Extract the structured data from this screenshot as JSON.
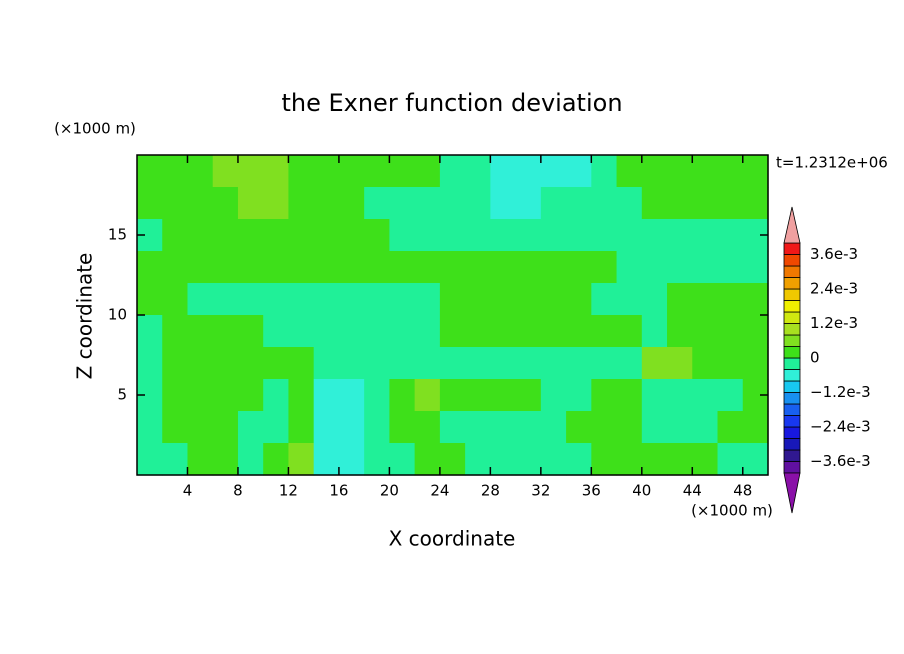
{
  "chart_data": {
    "type": "contour",
    "title": "the Exner function deviation",
    "xlabel": "X coordinate",
    "ylabel": "Z coordinate",
    "x_unit": "(×1000 m)",
    "y_unit": "(×1000 m)",
    "annotation": "t=1.2312e+06",
    "xlim": [
      0,
      50
    ],
    "ylim": [
      0,
      20
    ],
    "xticks": [
      4,
      8,
      12,
      16,
      20,
      24,
      28,
      32,
      36,
      40,
      44,
      48
    ],
    "yticks": [
      5,
      10,
      15
    ],
    "x": [
      1,
      3,
      5,
      7,
      9,
      11,
      13,
      15,
      17,
      19,
      21,
      23,
      25,
      27,
      29,
      31,
      33,
      35,
      37,
      39,
      41,
      43,
      45,
      47,
      49
    ],
    "y": [
      19,
      17,
      15,
      13,
      11,
      9,
      7,
      5,
      3,
      1
    ],
    "z": [
      [
        0.0002,
        0.0002,
        0.0002,
        0.0006,
        0.0006,
        0.0006,
        0.0002,
        0.0002,
        0.0002,
        0.0002,
        0.0002,
        0.0002,
        -0.0002,
        -0.0002,
        -0.0006,
        -0.0006,
        -0.0006,
        -0.0006,
        -0.0002,
        0.0002,
        0.0002,
        0.0002,
        0.0002,
        0.0002,
        0.0002
      ],
      [
        0.0002,
        0.0002,
        0.0002,
        0.0002,
        0.0006,
        0.0006,
        0.0002,
        0.0002,
        0.0002,
        -0.0002,
        -0.0002,
        -0.0002,
        -0.0002,
        -0.0002,
        -0.0006,
        -0.0006,
        -0.0002,
        -0.0002,
        -0.0002,
        -0.0002,
        0.0002,
        0.0002,
        0.0002,
        0.0002,
        0.0002
      ],
      [
        -0.0002,
        0.0002,
        0.0002,
        0.0002,
        0.0002,
        0.0002,
        0.0002,
        0.0002,
        0.0002,
        0.0002,
        -0.0002,
        -0.0002,
        -0.0002,
        -0.0002,
        -0.0002,
        -0.0002,
        -0.0002,
        -0.0002,
        -0.0002,
        -0.0002,
        -0.0002,
        -0.0002,
        -0.0002,
        -0.0002,
        -0.0002
      ],
      [
        0.0002,
        0.0002,
        0.0002,
        0.0002,
        0.0002,
        0.0002,
        0.0002,
        0.0002,
        0.0002,
        0.0002,
        0.0002,
        0.0002,
        0.0002,
        0.0002,
        0.0002,
        0.0002,
        0.0002,
        0.0002,
        0.0002,
        -0.0002,
        -0.0002,
        -0.0002,
        -0.0002,
        -0.0002,
        -0.0002
      ],
      [
        0.0002,
        0.0002,
        -0.0002,
        -0.0002,
        -0.0002,
        -0.0002,
        -0.0002,
        -0.0002,
        -0.0002,
        -0.0002,
        -0.0002,
        -0.0002,
        0.0002,
        0.0002,
        0.0002,
        0.0002,
        0.0002,
        0.0002,
        -0.0002,
        -0.0002,
        -0.0002,
        0.0002,
        0.0002,
        0.0002,
        0.0002
      ],
      [
        -0.0002,
        0.0002,
        0.0002,
        0.0002,
        0.0002,
        -0.0002,
        -0.0002,
        -0.0002,
        -0.0002,
        -0.0002,
        -0.0002,
        -0.0002,
        0.0002,
        0.0002,
        0.0002,
        0.0002,
        0.0002,
        0.0002,
        0.0002,
        0.0002,
        -0.0002,
        0.0002,
        0.0002,
        0.0002,
        0.0002
      ],
      [
        -0.0002,
        0.0002,
        0.0002,
        0.0002,
        0.0002,
        0.0002,
        0.0002,
        -0.0002,
        -0.0002,
        -0.0002,
        -0.0002,
        -0.0002,
        -0.0002,
        -0.0002,
        -0.0002,
        -0.0002,
        -0.0002,
        -0.0002,
        -0.0002,
        -0.0002,
        0.0006,
        0.0006,
        0.0002,
        0.0002,
        0.0002
      ],
      [
        -0.0002,
        0.0002,
        0.0002,
        0.0002,
        0.0002,
        -0.0002,
        0.0002,
        -0.0006,
        -0.0006,
        -0.0002,
        0.0002,
        0.0006,
        0.0002,
        0.0002,
        0.0002,
        0.0002,
        -0.0002,
        -0.0002,
        0.0002,
        0.0002,
        -0.0002,
        -0.0002,
        -0.0002,
        -0.0002,
        0.0002
      ],
      [
        -0.0002,
        0.0002,
        0.0002,
        0.0002,
        -0.0002,
        -0.0002,
        0.0002,
        -0.0006,
        -0.0006,
        -0.0002,
        0.0002,
        0.0002,
        -0.0002,
        -0.0002,
        -0.0002,
        -0.0002,
        -0.0002,
        0.0002,
        0.0002,
        0.0002,
        -0.0002,
        -0.0002,
        -0.0002,
        0.0002,
        0.0002
      ],
      [
        -0.0002,
        -0.0002,
        0.0002,
        0.0002,
        -0.0002,
        0.0002,
        0.0006,
        -0.0006,
        -0.0006,
        -0.0002,
        -0.0002,
        0.0002,
        0.0002,
        -0.0002,
        -0.0002,
        -0.0002,
        -0.0002,
        -0.0002,
        0.0002,
        0.0002,
        0.0002,
        0.0002,
        0.0002,
        -0.0002,
        -0.0002
      ]
    ],
    "levels": [
      -0.004,
      -0.0036,
      -0.0032,
      -0.0028,
      -0.0024,
      -0.002,
      -0.0016,
      -0.0012,
      -0.0008,
      -0.0004,
      0,
      0.0004,
      0.0008,
      0.0012,
      0.0016,
      0.002,
      0.0024,
      0.0028,
      0.0032,
      0.0036,
      0.004
    ],
    "level_colors": [
      "#6010a0",
      "#301890",
      "#1818b8",
      "#1818e0",
      "#1838f0",
      "#1860f0",
      "#1890f0",
      "#18c8f0",
      "#30f0d8",
      "#20f098",
      "#3ee01a",
      "#80e020",
      "#a8e020",
      "#d0e810",
      "#f0f000",
      "#f0c800",
      "#f0a000",
      "#f07800",
      "#f04800",
      "#f01818"
    ],
    "under_color": "#8a10a8",
    "over_color": "#f0a0a0",
    "cbar_ticks": [
      {
        "value": 0.0036,
        "label": "3.6e-3"
      },
      {
        "value": 0.0024,
        "label": "2.4e-3"
      },
      {
        "value": 0.0012,
        "label": "1.2e-3"
      },
      0,
      {
        "value": -0.0012,
        "label": "−1.2e-3"
      },
      {
        "value": -0.0024,
        "label": "−2.4e-3"
      },
      {
        "value": -0.0036,
        "label": "−3.6e-3"
      }
    ]
  }
}
